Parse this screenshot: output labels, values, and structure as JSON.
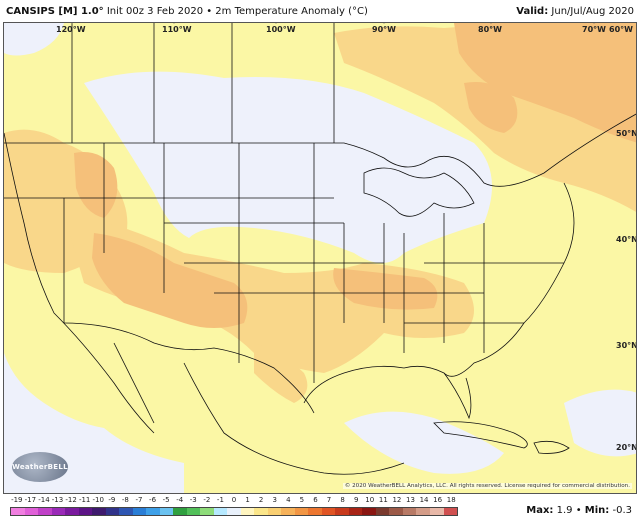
{
  "header": {
    "model": "CANSIPS [M] 1.0°",
    "subtitle": "Init 00z 3 Feb 2020 • 2m Temperature Anomaly (°C)",
    "valid_label": "Valid:",
    "valid_value": "Jun/Jul/Aug 2020"
  },
  "map": {
    "lon_labels": [
      "120°W",
      "110°W",
      "100°W",
      "90°W",
      "80°W",
      "70°W",
      "60°W"
    ],
    "lat_labels": [
      "50°N",
      "40°N",
      "30°N",
      "20°N"
    ],
    "colors": {
      "ocean_land_base": "#fbf7a5",
      "near_zero": "#eef1fb",
      "warm_light": "#f9d78a",
      "warm_mid": "#f5c07a",
      "border": "#111111"
    }
  },
  "logo": {
    "text": "WeatherBELL"
  },
  "copyright": "© 2020 WeatherBELL Analytics, LLC. All rights reserved. License required for commercial distribution.",
  "colorbar": {
    "labels": [
      "-19",
      "-17",
      "-14",
      "-13",
      "-12",
      "-11",
      "-10",
      "-9",
      "-8",
      "-7",
      "-6",
      "-5",
      "-4",
      "-3",
      "-2",
      "-1",
      "0",
      "1",
      "2",
      "3",
      "4",
      "5",
      "6",
      "7",
      "8",
      "9",
      "10",
      "11",
      "12",
      "13",
      "14",
      "16",
      "18"
    ],
    "colors": [
      "#f07ee0",
      "#e060d8",
      "#c040c8",
      "#9a2ab8",
      "#7a1a9e",
      "#5c1486",
      "#3e1a6e",
      "#30338a",
      "#2e56b2",
      "#2a7ed6",
      "#3ea0e8",
      "#6bc2f0",
      "#30a040",
      "#52c05a",
      "#8edc7a",
      "#b6e9ff",
      "#e9f1fb",
      "#fff5c0",
      "#fbe68a",
      "#f9cf72",
      "#f6b25a",
      "#f29644",
      "#ec7630",
      "#e05424",
      "#c83a1c",
      "#a82416",
      "#8a1612",
      "#7a3a2e",
      "#9c5a48",
      "#b87a66",
      "#d49c88",
      "#e8b8a8",
      "#d05050"
    ]
  },
  "maxmin": {
    "max_label": "Max:",
    "max_value": "1.9",
    "sep": "•",
    "min_label": "Min:",
    "min_value": "-0.3"
  }
}
